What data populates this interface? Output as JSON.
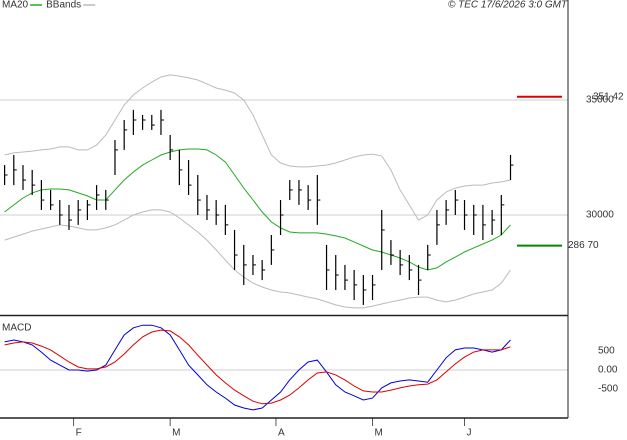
{
  "chart_data": [
    {
      "type": "ohlc",
      "source": "© TEC 17/6/2026 3:0 GMT",
      "x": [
        0,
        2,
        4,
        6,
        8,
        10,
        12,
        14,
        16,
        18,
        20,
        22,
        24,
        26,
        28,
        30,
        32,
        34,
        36,
        38,
        40,
        42,
        44,
        46,
        48,
        50,
        52,
        54,
        56,
        58,
        60,
        62,
        64,
        66,
        68,
        70,
        72,
        74,
        76,
        78,
        80,
        82,
        84,
        86,
        88,
        90,
        92,
        94,
        96,
        98,
        100,
        102,
        104,
        106,
        108,
        110
      ],
      "xlim": [
        -1,
        122.5
      ],
      "ylim": [
        25652,
        39348
      ],
      "yticks": [
        30000,
        35000
      ],
      "grid": true,
      "color": "#000000",
      "high": [
        32170,
        32610,
        32170,
        31960,
        31520,
        31090,
        30650,
        30440,
        30650,
        30650,
        31300,
        31090,
        33260,
        34130,
        34570,
        34350,
        34350,
        34570,
        33480,
        32830,
        32390,
        31740,
        30870,
        30650,
        30440,
        29350,
        28700,
        28260,
        28040,
        29130,
        30650,
        31520,
        31520,
        31300,
        31740,
        28700,
        28260,
        27830,
        27610,
        27390,
        27390,
        30220,
        28910,
        28480,
        28260,
        27830,
        28700,
        30220,
        30650,
        31090,
        30650,
        30440,
        30440,
        30220,
        30870,
        32610
      ],
      "low": [
        31300,
        31300,
        31090,
        30870,
        30220,
        30220,
        29570,
        29350,
        29570,
        29780,
        30220,
        30220,
        31740,
        32830,
        33480,
        33700,
        33700,
        33480,
        32390,
        31300,
        30870,
        30000,
        29780,
        29570,
        29130,
        27610,
        26960,
        27390,
        27170,
        27830,
        29130,
        30650,
        30440,
        30220,
        29570,
        26740,
        26740,
        26740,
        26300,
        26090,
        26300,
        27610,
        27830,
        27390,
        27170,
        26520,
        27610,
        28700,
        29570,
        30000,
        29350,
        29130,
        28910,
        29130,
        29130,
        31520
      ],
      "close": [
        31740,
        31960,
        31520,
        31300,
        30650,
        30440,
        30000,
        29780,
        30220,
        30440,
        30870,
        30650,
        32830,
        33700,
        34130,
        34130,
        33910,
        34130,
        32830,
        31960,
        31300,
        30650,
        30220,
        30000,
        29570,
        28260,
        27830,
        27830,
        27610,
        28480,
        30000,
        31090,
        31090,
        30650,
        30650,
        27610,
        27390,
        27170,
        26960,
        26740,
        26960,
        29350,
        28260,
        27830,
        27610,
        27170,
        28260,
        29570,
        30220,
        30650,
        30000,
        30000,
        29570,
        29780,
        30440,
        32170
      ],
      "series": [
        {
          "name": "MA20",
          "color": "#22aa22",
          "values": [
            30130,
            30440,
            30740,
            30960,
            31090,
            31130,
            31130,
            31090,
            30960,
            30830,
            30650,
            30650,
            31090,
            31520,
            31870,
            32170,
            32390,
            32610,
            32740,
            32830,
            32870,
            32870,
            32830,
            32610,
            32300,
            31740,
            31170,
            30650,
            30130,
            29700,
            29440,
            29260,
            29220,
            29220,
            29220,
            29170,
            29090,
            29000,
            28830,
            28650,
            28480,
            28390,
            28260,
            28130,
            27960,
            27740,
            27610,
            27700,
            27960,
            28170,
            28390,
            28570,
            28740,
            28910,
            29130,
            29570
          ]
        },
        {
          "name": "BBands",
          "color": "#bbbbbb",
          "upper": [
            32610,
            32700,
            32740,
            32780,
            32830,
            32870,
            32960,
            32960,
            32830,
            32830,
            33040,
            33480,
            34130,
            34780,
            35220,
            35520,
            35780,
            36000,
            36090,
            36040,
            35960,
            35870,
            35700,
            35520,
            35430,
            35300,
            35000,
            34350,
            33480,
            32610,
            32260,
            32130,
            32090,
            32090,
            32130,
            32170,
            32260,
            32390,
            32520,
            32610,
            32650,
            32570,
            31960,
            31090,
            30440,
            29780,
            30000,
            30650,
            31000,
            31170,
            31260,
            31300,
            31300,
            31390,
            31440,
            31520
          ],
          "lower": [
            28910,
            29040,
            29170,
            29300,
            29390,
            29480,
            29570,
            29520,
            29440,
            29350,
            29350,
            29440,
            29570,
            29780,
            30000,
            30130,
            30220,
            30220,
            30130,
            29870,
            29570,
            29260,
            28910,
            28480,
            28040,
            27610,
            27300,
            27040,
            26870,
            26740,
            26650,
            26610,
            26520,
            26430,
            26350,
            26220,
            26090,
            26000,
            25960,
            25960,
            26040,
            26130,
            26220,
            26300,
            26390,
            26430,
            26430,
            26300,
            26220,
            26300,
            26430,
            26570,
            26650,
            26740,
            27040,
            27610
          ]
        }
      ],
      "price_levels": [
        {
          "value": 35142,
          "label": "351 42",
          "color": "#dd0000"
        },
        {
          "value": 28670,
          "label": "286 70",
          "color": "#008800"
        }
      ]
    },
    {
      "type": "line",
      "title": "MACD",
      "x": [
        0,
        2,
        4,
        6,
        8,
        10,
        12,
        14,
        16,
        18,
        20,
        22,
        24,
        26,
        28,
        30,
        32,
        34,
        36,
        38,
        40,
        42,
        44,
        46,
        48,
        50,
        52,
        54,
        56,
        58,
        60,
        62,
        64,
        66,
        68,
        70,
        72,
        74,
        76,
        78,
        80,
        82,
        84,
        86,
        88,
        90,
        92,
        94,
        96,
        98,
        100,
        102,
        104,
        106,
        108,
        110
      ],
      "xlim": [
        -1,
        122.5
      ],
      "xticks": [
        {
          "value": 15,
          "label": "F"
        },
        {
          "value": 36,
          "label": "M"
        },
        {
          "value": 59,
          "label": "A"
        },
        {
          "value": 80,
          "label": "M"
        },
        {
          "value": 100,
          "label": "J"
        }
      ],
      "ylim": [
        -1263,
        1421
      ],
      "yticks": [
        500,
        {
          "value": 0,
          "label": "0.00"
        },
        -500
      ],
      "zero_line": true,
      "series": [
        {
          "color": "#0000dd",
          "values": [
            740,
            790,
            740,
            660,
            470,
            260,
            130,
            0,
            0,
            -30,
            0,
            130,
            530,
            920,
            1110,
            1180,
            1180,
            1110,
            920,
            530,
            130,
            -130,
            -390,
            -580,
            -740,
            -920,
            -1000,
            -1050,
            -1000,
            -790,
            -580,
            -260,
            0,
            210,
            260,
            -50,
            -390,
            -580,
            -680,
            -790,
            -740,
            -470,
            -340,
            -290,
            -260,
            -290,
            -320,
            0,
            320,
            530,
            580,
            580,
            530,
            470,
            530,
            790
          ]
        },
        {
          "color": "#dd0000",
          "values": [
            660,
            710,
            740,
            710,
            630,
            530,
            370,
            210,
            80,
            30,
            30,
            80,
            210,
            420,
            660,
            870,
            1000,
            1050,
            1030,
            870,
            660,
            390,
            130,
            -130,
            -340,
            -530,
            -680,
            -820,
            -890,
            -870,
            -790,
            -660,
            -470,
            -260,
            -80,
            -50,
            -130,
            -260,
            -420,
            -550,
            -580,
            -580,
            -530,
            -470,
            -420,
            -390,
            -370,
            -260,
            -50,
            160,
            340,
            470,
            530,
            530,
            530,
            610
          ]
        }
      ]
    }
  ]
}
